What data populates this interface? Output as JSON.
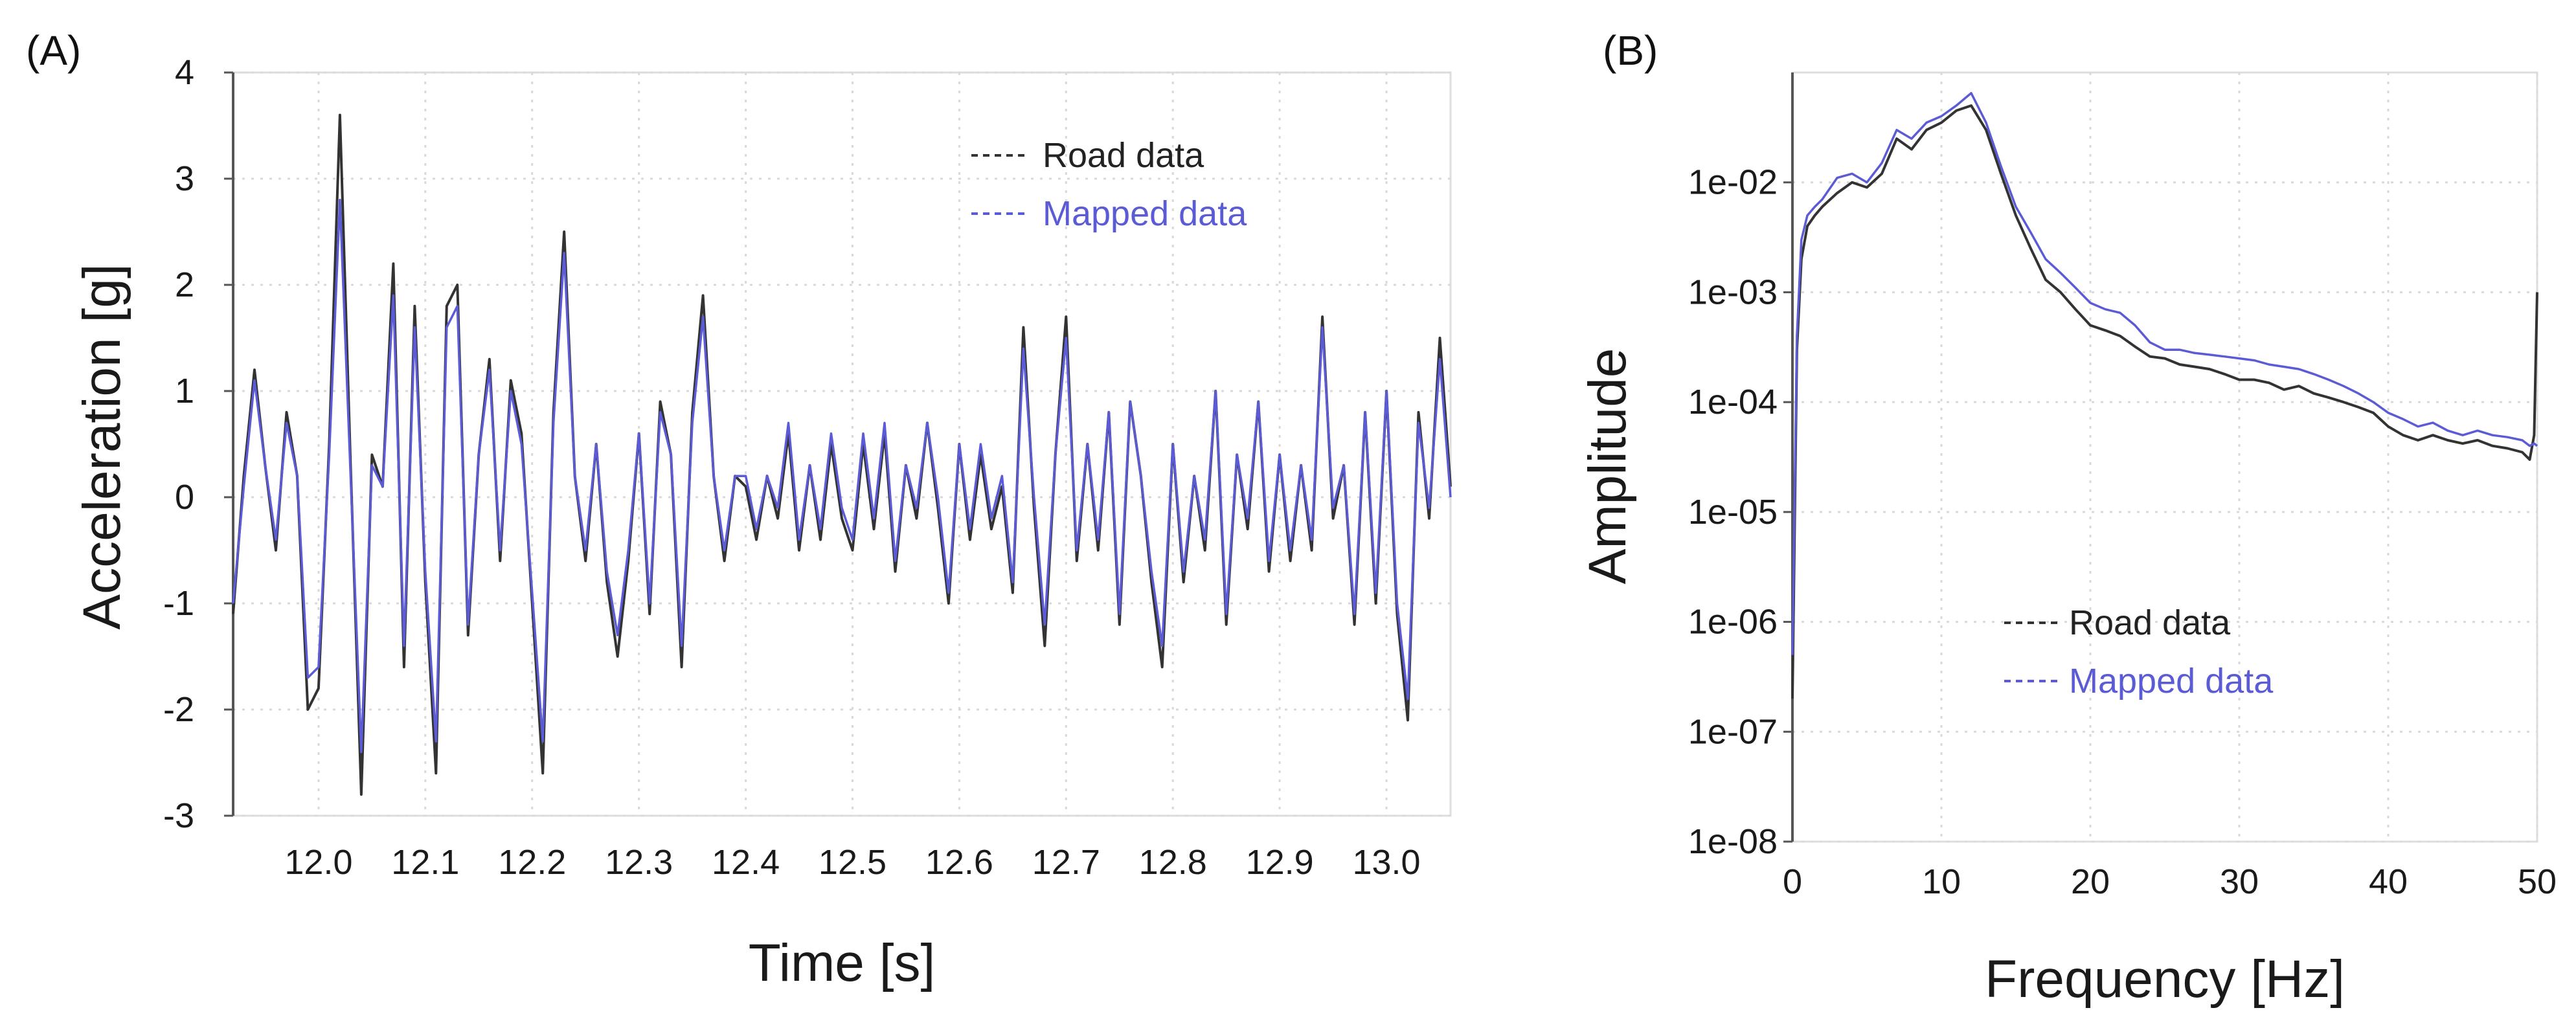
{
  "chart_data": [
    {
      "type": "line",
      "panel_label": "(A)",
      "title": "",
      "xlabel": "Time [s]",
      "ylabel": "Acceleration [g]",
      "xlim": [
        11.92,
        13.06
      ],
      "ylim": [
        -3,
        4
      ],
      "xticks": [
        12.0,
        12.1,
        12.2,
        12.3,
        12.4,
        12.5,
        12.6,
        12.7,
        12.8,
        12.9,
        13.0
      ],
      "xtick_labels": [
        "12.0",
        "12.1",
        "12.2",
        "12.3",
        "12.4",
        "12.5",
        "12.6",
        "12.7",
        "12.8",
        "12.9",
        "13.0"
      ],
      "yticks": [
        -3,
        -2,
        -1,
        0,
        1,
        2,
        3,
        4
      ],
      "ytick_labels": [
        "-3",
        "-2",
        "-1",
        "0",
        "1",
        "2",
        "3",
        "4"
      ],
      "grid": true,
      "legend_position": "top-right",
      "series": [
        {
          "name": "Road data",
          "color": "#333333",
          "x": [
            11.92,
            11.93,
            11.94,
            11.95,
            11.96,
            11.97,
            11.98,
            11.99,
            12.0,
            12.01,
            12.02,
            12.03,
            12.04,
            12.05,
            12.06,
            12.07,
            12.08,
            12.09,
            12.1,
            12.11,
            12.12,
            12.13,
            12.14,
            12.15,
            12.16,
            12.17,
            12.18,
            12.19,
            12.2,
            12.21,
            12.22,
            12.23,
            12.24,
            12.25,
            12.26,
            12.27,
            12.28,
            12.29,
            12.3,
            12.31,
            12.32,
            12.33,
            12.34,
            12.35,
            12.36,
            12.37,
            12.38,
            12.39,
            12.4,
            12.41,
            12.42,
            12.43,
            12.44,
            12.45,
            12.46,
            12.47,
            12.48,
            12.49,
            12.5,
            12.51,
            12.52,
            12.53,
            12.54,
            12.55,
            12.56,
            12.57,
            12.58,
            12.59,
            12.6,
            12.61,
            12.62,
            12.63,
            12.64,
            12.65,
            12.66,
            12.67,
            12.68,
            12.69,
            12.7,
            12.71,
            12.72,
            12.73,
            12.74,
            12.75,
            12.76,
            12.77,
            12.78,
            12.79,
            12.8,
            12.81,
            12.82,
            12.83,
            12.84,
            12.85,
            12.86,
            12.87,
            12.88,
            12.89,
            12.9,
            12.91,
            12.92,
            12.93,
            12.94,
            12.95,
            12.96,
            12.97,
            12.98,
            12.99,
            13.0,
            13.01,
            13.02,
            13.03,
            13.04,
            13.05,
            13.06
          ],
          "values": [
            -1.1,
            0.2,
            1.2,
            0.3,
            -0.5,
            0.8,
            0.2,
            -2.0,
            -1.8,
            0.5,
            3.6,
            0.3,
            -2.8,
            0.4,
            0.1,
            2.2,
            -1.6,
            1.8,
            -0.8,
            -2.6,
            1.8,
            2.0,
            -1.3,
            0.4,
            1.3,
            -0.6,
            1.1,
            0.6,
            -1.0,
            -2.6,
            0.8,
            2.5,
            0.2,
            -0.6,
            0.5,
            -0.8,
            -1.5,
            -0.6,
            0.6,
            -1.1,
            0.9,
            0.4,
            -1.6,
            0.8,
            1.9,
            0.2,
            -0.6,
            0.2,
            0.1,
            -0.4,
            0.2,
            -0.2,
            0.6,
            -0.5,
            0.3,
            -0.4,
            0.5,
            -0.2,
            -0.5,
            0.5,
            -0.3,
            0.6,
            -0.7,
            0.3,
            -0.2,
            0.7,
            -0.1,
            -1.0,
            0.5,
            -0.4,
            0.4,
            -0.3,
            0.1,
            -0.9,
            1.6,
            -0.1,
            -1.4,
            0.4,
            1.7,
            -0.6,
            0.5,
            -0.5,
            0.8,
            -1.2,
            0.9,
            0.2,
            -0.8,
            -1.6,
            0.5,
            -0.8,
            0.2,
            -0.5,
            1.0,
            -1.2,
            0.4,
            -0.3,
            0.9,
            -0.7,
            0.4,
            -0.6,
            0.3,
            -0.5,
            1.7,
            -0.2,
            0.3,
            -1.2,
            0.8,
            -1.0,
            1.0,
            -1.1,
            -2.1,
            0.8,
            -0.2,
            1.5,
            0.1
          ],
          "legend_label": "Road data"
        },
        {
          "name": "Mapped data",
          "color": "#5b5bd6",
          "x": [
            11.92,
            11.93,
            11.94,
            11.95,
            11.96,
            11.97,
            11.98,
            11.99,
            12.0,
            12.01,
            12.02,
            12.03,
            12.04,
            12.05,
            12.06,
            12.07,
            12.08,
            12.09,
            12.1,
            12.11,
            12.12,
            12.13,
            12.14,
            12.15,
            12.16,
            12.17,
            12.18,
            12.19,
            12.2,
            12.21,
            12.22,
            12.23,
            12.24,
            12.25,
            12.26,
            12.27,
            12.28,
            12.29,
            12.3,
            12.31,
            12.32,
            12.33,
            12.34,
            12.35,
            12.36,
            12.37,
            12.38,
            12.39,
            12.4,
            12.41,
            12.42,
            12.43,
            12.44,
            12.45,
            12.46,
            12.47,
            12.48,
            12.49,
            12.5,
            12.51,
            12.52,
            12.53,
            12.54,
            12.55,
            12.56,
            12.57,
            12.58,
            12.59,
            12.6,
            12.61,
            12.62,
            12.63,
            12.64,
            12.65,
            12.66,
            12.67,
            12.68,
            12.69,
            12.7,
            12.71,
            12.72,
            12.73,
            12.74,
            12.75,
            12.76,
            12.77,
            12.78,
            12.79,
            12.8,
            12.81,
            12.82,
            12.83,
            12.84,
            12.85,
            12.86,
            12.87,
            12.88,
            12.89,
            12.9,
            12.91,
            12.92,
            12.93,
            12.94,
            12.95,
            12.96,
            12.97,
            12.98,
            12.99,
            13.0,
            13.01,
            13.02,
            13.03,
            13.04,
            13.05,
            13.06
          ],
          "values": [
            -1.0,
            0.1,
            1.1,
            0.3,
            -0.4,
            0.7,
            0.2,
            -1.7,
            -1.6,
            0.4,
            2.8,
            0.2,
            -2.4,
            0.3,
            0.1,
            1.9,
            -1.4,
            1.6,
            -0.7,
            -2.3,
            1.6,
            1.8,
            -1.2,
            0.4,
            1.2,
            -0.5,
            1.0,
            0.5,
            -0.9,
            -2.3,
            0.7,
            2.3,
            0.2,
            -0.5,
            0.5,
            -0.7,
            -1.3,
            -0.5,
            0.6,
            -1.0,
            0.8,
            0.4,
            -1.4,
            0.7,
            1.7,
            0.2,
            -0.5,
            0.2,
            0.2,
            -0.3,
            0.2,
            -0.1,
            0.7,
            -0.4,
            0.3,
            -0.3,
            0.6,
            -0.1,
            -0.4,
            0.6,
            -0.2,
            0.7,
            -0.6,
            0.3,
            -0.1,
            0.7,
            0.0,
            -0.9,
            0.5,
            -0.3,
            0.5,
            -0.2,
            0.2,
            -0.8,
            1.4,
            0.0,
            -1.2,
            0.4,
            1.5,
            -0.5,
            0.5,
            -0.4,
            0.8,
            -1.1,
            0.9,
            0.2,
            -0.7,
            -1.4,
            0.5,
            -0.7,
            0.2,
            -0.4,
            1.0,
            -1.1,
            0.4,
            -0.2,
            0.9,
            -0.6,
            0.4,
            -0.5,
            0.3,
            -0.4,
            1.6,
            -0.1,
            0.3,
            -1.1,
            0.8,
            -0.9,
            1.0,
            -1.0,
            -1.9,
            0.7,
            -0.1,
            1.3,
            0.0
          ],
          "legend_label": "Mapped data"
        }
      ]
    },
    {
      "type": "line",
      "panel_label": "(B)",
      "title": "",
      "xlabel": "Frequency [Hz]",
      "ylabel": "Amplitude",
      "xlim": [
        0,
        50
      ],
      "ylim": [
        1e-08,
        0.1
      ],
      "yscale": "log",
      "xticks": [
        0,
        10,
        20,
        30,
        40,
        50
      ],
      "xtick_labels": [
        "0",
        "10",
        "20",
        "30",
        "40",
        "50"
      ],
      "yticks": [
        1e-08,
        1e-07,
        1e-06,
        1e-05,
        0.0001,
        0.001,
        0.01
      ],
      "ytick_labels": [
        "1e-08",
        "1e-07",
        "1e-06",
        "1e-05",
        "1e-04",
        "1e-03",
        "1e-02"
      ],
      "grid": true,
      "legend_position": "center",
      "series": [
        {
          "name": "Road data",
          "color": "#333333",
          "x": [
            0,
            0.3,
            0.6,
            1,
            1.5,
            2,
            3,
            4,
            5,
            6,
            7,
            8,
            9,
            10,
            11,
            12,
            13,
            14,
            15,
            16,
            17,
            18,
            19,
            20,
            21,
            22,
            23,
            24,
            25,
            26,
            27,
            28,
            29,
            30,
            31,
            32,
            33,
            34,
            35,
            36,
            37,
            38,
            39,
            40,
            41,
            42,
            43,
            44,
            45,
            46,
            47,
            48,
            49,
            49.5,
            49.8,
            50
          ],
          "values": [
            2e-07,
            0.0003,
            0.002,
            0.004,
            0.005,
            0.006,
            0.008,
            0.01,
            0.009,
            0.012,
            0.025,
            0.02,
            0.03,
            0.035,
            0.045,
            0.05,
            0.03,
            0.012,
            0.005,
            0.0025,
            0.0013,
            0.001,
            0.0007,
            0.0005,
            0.00045,
            0.0004,
            0.00032,
            0.00026,
            0.00025,
            0.00022,
            0.00021,
            0.0002,
            0.00018,
            0.00016,
            0.00016,
            0.00015,
            0.00013,
            0.00014,
            0.00012,
            0.00011,
            0.0001,
            9e-05,
            8e-05,
            6e-05,
            5e-05,
            4.5e-05,
            5e-05,
            4.5e-05,
            4.2e-05,
            4.5e-05,
            4e-05,
            3.8e-05,
            3.5e-05,
            3e-05,
            5e-05,
            0.001
          ],
          "legend_label": "Road data"
        },
        {
          "name": "Mapped data",
          "color": "#5b5bd6",
          "x": [
            0,
            0.3,
            0.6,
            1,
            1.5,
            2,
            3,
            4,
            5,
            6,
            7,
            8,
            9,
            10,
            11,
            12,
            13,
            14,
            15,
            16,
            17,
            18,
            19,
            20,
            21,
            22,
            23,
            24,
            25,
            26,
            27,
            28,
            29,
            30,
            31,
            32,
            33,
            34,
            35,
            36,
            37,
            38,
            39,
            40,
            41,
            42,
            43,
            44,
            45,
            46,
            47,
            48,
            49,
            49.5,
            49.8,
            50
          ],
          "values": [
            5e-07,
            0.0004,
            0.003,
            0.005,
            0.006,
            0.007,
            0.011,
            0.012,
            0.01,
            0.015,
            0.03,
            0.025,
            0.035,
            0.04,
            0.05,
            0.065,
            0.035,
            0.014,
            0.006,
            0.0035,
            0.002,
            0.0015,
            0.0011,
            0.0008,
            0.0007,
            0.00065,
            0.0005,
            0.00035,
            0.0003,
            0.0003,
            0.00028,
            0.00027,
            0.00026,
            0.00025,
            0.00024,
            0.00022,
            0.00021,
            0.0002,
            0.00018,
            0.00016,
            0.00014,
            0.00012,
            0.0001,
            8e-05,
            7e-05,
            6e-05,
            6.5e-05,
            5.5e-05,
            5e-05,
            5.5e-05,
            5e-05,
            4.8e-05,
            4.5e-05,
            4e-05,
            4.2e-05,
            4e-05
          ],
          "legend_label": "Mapped data"
        }
      ]
    }
  ]
}
